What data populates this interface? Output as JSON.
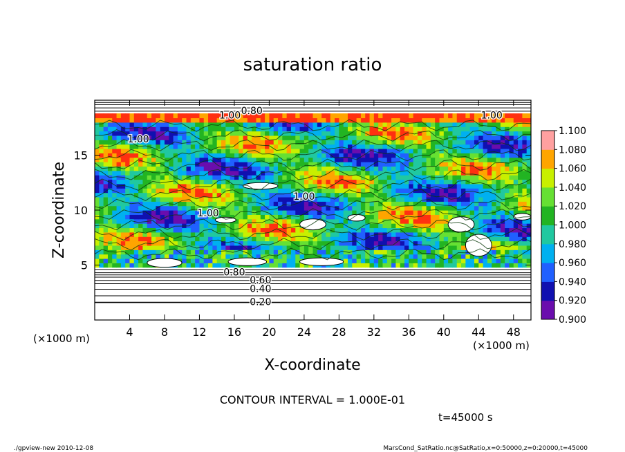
{
  "chart_data": {
    "type": "heatmap",
    "title": "saturation ratio",
    "xlabel": "X-coordinate",
    "ylabel": "Z-coordinate",
    "x_unit_left": "(×1000 m)",
    "x_unit_right": "(×1000 m)",
    "xlim": [
      0,
      50
    ],
    "ylim": [
      0,
      20
    ],
    "x_ticks": [
      "4",
      "8",
      "12",
      "16",
      "20",
      "24",
      "28",
      "32",
      "36",
      "40",
      "44",
      "48"
    ],
    "y_ticks": [
      "5",
      "10",
      "15"
    ],
    "colorbar": {
      "labels": [
        "0.900",
        "0.920",
        "0.940",
        "0.960",
        "0.980",
        "1.000",
        "1.020",
        "1.040",
        "1.060",
        "1.080",
        "1.100"
      ],
      "colors": [
        "#6a0dad",
        "#1010b0",
        "#2060ff",
        "#00b0f0",
        "#20c8a0",
        "#22b422",
        "#66e033",
        "#c8f000",
        "#ffa500",
        "#ff3010",
        "#ffa0a0"
      ]
    },
    "contour_labels": [
      {
        "text": "0.20",
        "x": 19,
        "y": 1.6
      },
      {
        "text": "0.40",
        "x": 19,
        "y": 2.8
      },
      {
        "text": "0.60",
        "x": 19,
        "y": 3.6
      },
      {
        "text": "0.80",
        "x": 16,
        "y": 4.3
      },
      {
        "text": "1.00",
        "x": 5,
        "y": 16.4
      },
      {
        "text": "1.00",
        "x": 24,
        "y": 11.2
      },
      {
        "text": "1.00",
        "x": 13,
        "y": 9.7
      },
      {
        "text": "1.00",
        "x": 45.5,
        "y": 18.6
      },
      {
        "text": "1.00",
        "x": 15.5,
        "y": 18.6
      },
      {
        "text": "0.80",
        "x": 18,
        "y": 19.0
      }
    ],
    "contour_interval_text": "CONTOUR INTERVAL = 1.000E-01",
    "time_text": "t=45000 s"
  },
  "footer": {
    "left": "./gpview-new 2010-12-08",
    "right": "MarsCond_SatRatio.nc@SatRatio,x=0:50000,z=0:20000,t=45000"
  }
}
